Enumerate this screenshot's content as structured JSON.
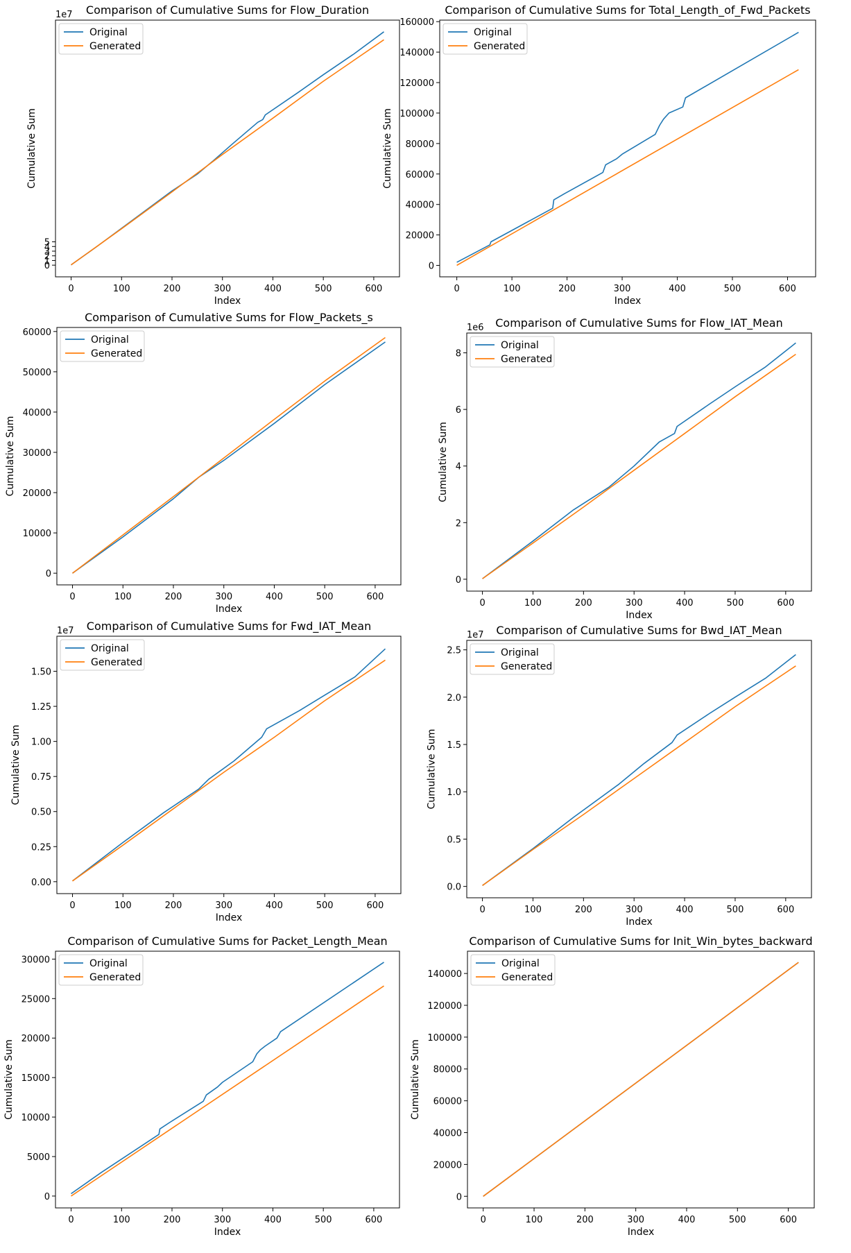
{
  "legend": {
    "original": "Original",
    "generated": "Generated"
  },
  "colors": {
    "original": "#1f77b4",
    "generated": "#ff7f0e"
  },
  "chart_data": [
    {
      "type": "line",
      "title": "Comparison of Cumulative Sums for Flow_Duration",
      "xlabel": "Index",
      "ylabel": "Cumulative Sum",
      "xlim": [
        -31,
        651
      ],
      "ylim": [
        -2.5,
        52.5
      ],
      "xticks": [
        0,
        100,
        200,
        300,
        400,
        500,
        600
      ],
      "yticks": [
        0,
        1,
        2,
        3,
        4,
        5
      ],
      "ytick_labels": [
        "0",
        "1",
        "2",
        "3",
        "4",
        "5"
      ],
      "offset_label": "1e7",
      "legend_position": "upper-left",
      "series": [
        {
          "name": "Original",
          "x": [
            0,
            50,
            100,
            150,
            200,
            250,
            280,
            320,
            370,
            380,
            385,
            450,
            500,
            560,
            620
          ],
          "y": [
            0.05,
            3.9,
            7.9,
            11.9,
            15.9,
            19.5,
            22.2,
            26.0,
            30.6,
            31.2,
            32.2,
            37.0,
            40.8,
            45.2,
            50.0
          ]
        },
        {
          "name": "Generated",
          "x": [
            0,
            100,
            200,
            300,
            400,
            500,
            620
          ],
          "y": [
            0.05,
            7.8,
            15.7,
            23.7,
            31.5,
            39.4,
            48.3
          ]
        }
      ]
    },
    {
      "type": "line",
      "title": "Comparison of Cumulative Sums for Total_Length_of_Fwd_Packets",
      "xlabel": "Index",
      "ylabel": "Cumulative Sum",
      "xlim": [
        -31,
        651
      ],
      "ylim": [
        -7500,
        161000
      ],
      "xticks": [
        0,
        100,
        200,
        300,
        400,
        500,
        600
      ],
      "yticks": [
        0,
        20000,
        40000,
        60000,
        80000,
        100000,
        120000,
        140000,
        160000
      ],
      "ytick_labels": [
        "0",
        "20000",
        "40000",
        "60000",
        "80000",
        "100000",
        "120000",
        "140000",
        "160000"
      ],
      "offset_label": "",
      "legend_position": "upper-left",
      "series": [
        {
          "name": "Original",
          "x": [
            0,
            60,
            62,
            174,
            176,
            195,
            265,
            270,
            290,
            300,
            360,
            368,
            375,
            385,
            410,
            415,
            620
          ],
          "y": [
            2000,
            13500,
            15500,
            37500,
            43000,
            47000,
            61000,
            66000,
            70000,
            73000,
            86000,
            92000,
            96000,
            100000,
            104000,
            110000,
            153000
          ]
        },
        {
          "name": "Generated",
          "x": [
            0,
            620
          ],
          "y": [
            0,
            128500
          ]
        }
      ]
    },
    {
      "type": "line",
      "title": "Comparison of Cumulative Sums for Flow_Packets_s",
      "xlabel": "Index",
      "ylabel": "Cumulative Sum",
      "xlim": [
        -31,
        651
      ],
      "ylim": [
        -2900,
        61000
      ],
      "xticks": [
        0,
        100,
        200,
        300,
        400,
        500,
        600
      ],
      "yticks": [
        0,
        10000,
        20000,
        30000,
        40000,
        50000,
        60000
      ],
      "ytick_labels": [
        "0",
        "10000",
        "20000",
        "30000",
        "40000",
        "50000",
        "60000"
      ],
      "offset_label": "",
      "legend_position": "upper-left",
      "series": [
        {
          "name": "Original",
          "x": [
            0,
            100,
            200,
            250,
            300,
            400,
            500,
            620
          ],
          "y": [
            0,
            9000,
            18500,
            23800,
            28000,
            37200,
            46800,
            57400
          ]
        },
        {
          "name": "Generated",
          "x": [
            0,
            100,
            200,
            300,
            400,
            500,
            620
          ],
          "y": [
            0,
            9500,
            19000,
            28600,
            38200,
            47700,
            58500
          ]
        }
      ]
    },
    {
      "type": "line",
      "title": "Comparison of Cumulative Sums for Flow_IAT_Mean",
      "xlabel": "Index",
      "ylabel": "Cumulative Sum",
      "xlim": [
        -31,
        651
      ],
      "ylim": [
        -0.42,
        8.7
      ],
      "xticks": [
        0,
        100,
        200,
        300,
        400,
        500,
        600
      ],
      "yticks": [
        0,
        2,
        4,
        6,
        8
      ],
      "ytick_labels": [
        "0",
        "2",
        "4",
        "6",
        "8"
      ],
      "offset_label": "1e6",
      "legend_position": "upper-left",
      "series": [
        {
          "name": "Original",
          "x": [
            0,
            100,
            180,
            250,
            300,
            350,
            380,
            385,
            450,
            500,
            560,
            620
          ],
          "y": [
            0.02,
            1.35,
            2.45,
            3.25,
            4.0,
            4.85,
            5.15,
            5.4,
            6.2,
            6.8,
            7.5,
            8.35
          ]
        },
        {
          "name": "Generated",
          "x": [
            0,
            100,
            200,
            300,
            400,
            500,
            620
          ],
          "y": [
            0.02,
            1.28,
            2.55,
            3.85,
            5.15,
            6.45,
            7.95
          ]
        }
      ]
    },
    {
      "type": "line",
      "title": "Comparison of Cumulative Sums for Fwd_IAT_Mean",
      "xlabel": "Index",
      "ylabel": "Cumulative Sum",
      "xlim": [
        -31,
        651
      ],
      "ylim": [
        -0.085,
        1.75
      ],
      "xticks": [
        0,
        100,
        200,
        300,
        400,
        500,
        600
      ],
      "yticks": [
        0,
        0.25,
        0.5,
        0.75,
        1.0,
        1.25,
        1.5
      ],
      "ytick_labels": [
        "0.00",
        "0.25",
        "0.50",
        "0.75",
        "1.00",
        "1.25",
        "1.50"
      ],
      "offset_label": "1e7",
      "legend_position": "upper-left",
      "series": [
        {
          "name": "Original",
          "x": [
            0,
            100,
            180,
            250,
            270,
            320,
            375,
            380,
            385,
            450,
            500,
            560,
            620
          ],
          "y": [
            0.005,
            0.28,
            0.49,
            0.66,
            0.73,
            0.86,
            1.03,
            1.06,
            1.09,
            1.22,
            1.33,
            1.46,
            1.66
          ]
        },
        {
          "name": "Generated",
          "x": [
            0,
            100,
            200,
            300,
            400,
            500,
            620
          ],
          "y": [
            0.005,
            0.26,
            0.52,
            0.78,
            1.03,
            1.29,
            1.58
          ]
        }
      ]
    },
    {
      "type": "line",
      "title": "Comparison of Cumulative Sums for Bwd_IAT_Mean",
      "xlabel": "Index",
      "ylabel": "Cumulative Sum",
      "xlim": [
        -31,
        651
      ],
      "ylim": [
        -0.12,
        2.6
      ],
      "xticks": [
        0,
        100,
        200,
        300,
        400,
        500,
        600
      ],
      "yticks": [
        0,
        0.5,
        1.0,
        1.5,
        2.0,
        2.5
      ],
      "ytick_labels": [
        "0.0",
        "0.5",
        "1.0",
        "1.5",
        "2.0",
        "2.5"
      ],
      "offset_label": "1e7",
      "legend_position": "upper-left",
      "series": [
        {
          "name": "Original",
          "x": [
            0,
            100,
            180,
            270,
            320,
            375,
            380,
            385,
            450,
            500,
            560,
            620
          ],
          "y": [
            0.01,
            0.4,
            0.73,
            1.08,
            1.3,
            1.52,
            1.56,
            1.6,
            1.83,
            2.0,
            2.2,
            2.45
          ]
        },
        {
          "name": "Generated",
          "x": [
            0,
            100,
            200,
            300,
            400,
            500,
            620
          ],
          "y": [
            0.01,
            0.39,
            0.76,
            1.14,
            1.52,
            1.9,
            2.33
          ]
        }
      ]
    },
    {
      "type": "line",
      "title": "Comparison of Cumulative Sums for Packet_Length_Mean",
      "xlabel": "Index",
      "ylabel": "Cumulative Sum",
      "xlim": [
        -31,
        651
      ],
      "ylim": [
        -1500,
        31000
      ],
      "xticks": [
        0,
        100,
        200,
        300,
        400,
        500,
        600
      ],
      "yticks": [
        0,
        5000,
        10000,
        15000,
        20000,
        25000,
        30000
      ],
      "ytick_labels": [
        "0",
        "5000",
        "10000",
        "15000",
        "20000",
        "25000",
        "30000"
      ],
      "offset_label": "",
      "legend_position": "upper-left",
      "series": [
        {
          "name": "Original",
          "x": [
            0,
            60,
            174,
            176,
            195,
            262,
            268,
            290,
            300,
            360,
            368,
            375,
            385,
            408,
            415,
            620
          ],
          "y": [
            300,
            3000,
            7800,
            8500,
            9300,
            12000,
            12800,
            13800,
            14400,
            17000,
            18000,
            18500,
            19000,
            20000,
            20800,
            29600
          ]
        },
        {
          "name": "Generated",
          "x": [
            0,
            620
          ],
          "y": [
            0,
            26600
          ]
        }
      ]
    },
    {
      "type": "line",
      "title": "Comparison of Cumulative Sums for Init_Win_bytes_backward",
      "xlabel": "Index",
      "ylabel": "Cumulative Sum",
      "xlim": [
        -31,
        651
      ],
      "ylim": [
        -7300,
        154000
      ],
      "xticks": [
        0,
        100,
        200,
        300,
        400,
        500,
        600
      ],
      "yticks": [
        0,
        20000,
        40000,
        60000,
        80000,
        100000,
        120000,
        140000
      ],
      "ytick_labels": [
        "0",
        "20000",
        "40000",
        "60000",
        "80000",
        "100000",
        "120000",
        "140000"
      ],
      "offset_label": "",
      "legend_position": "upper-left",
      "series": [
        {
          "name": "Original",
          "x": [
            0,
            620
          ],
          "y": [
            0,
            147000
          ]
        },
        {
          "name": "Generated",
          "x": [
            0,
            620
          ],
          "y": [
            0,
            147000
          ]
        }
      ]
    }
  ]
}
